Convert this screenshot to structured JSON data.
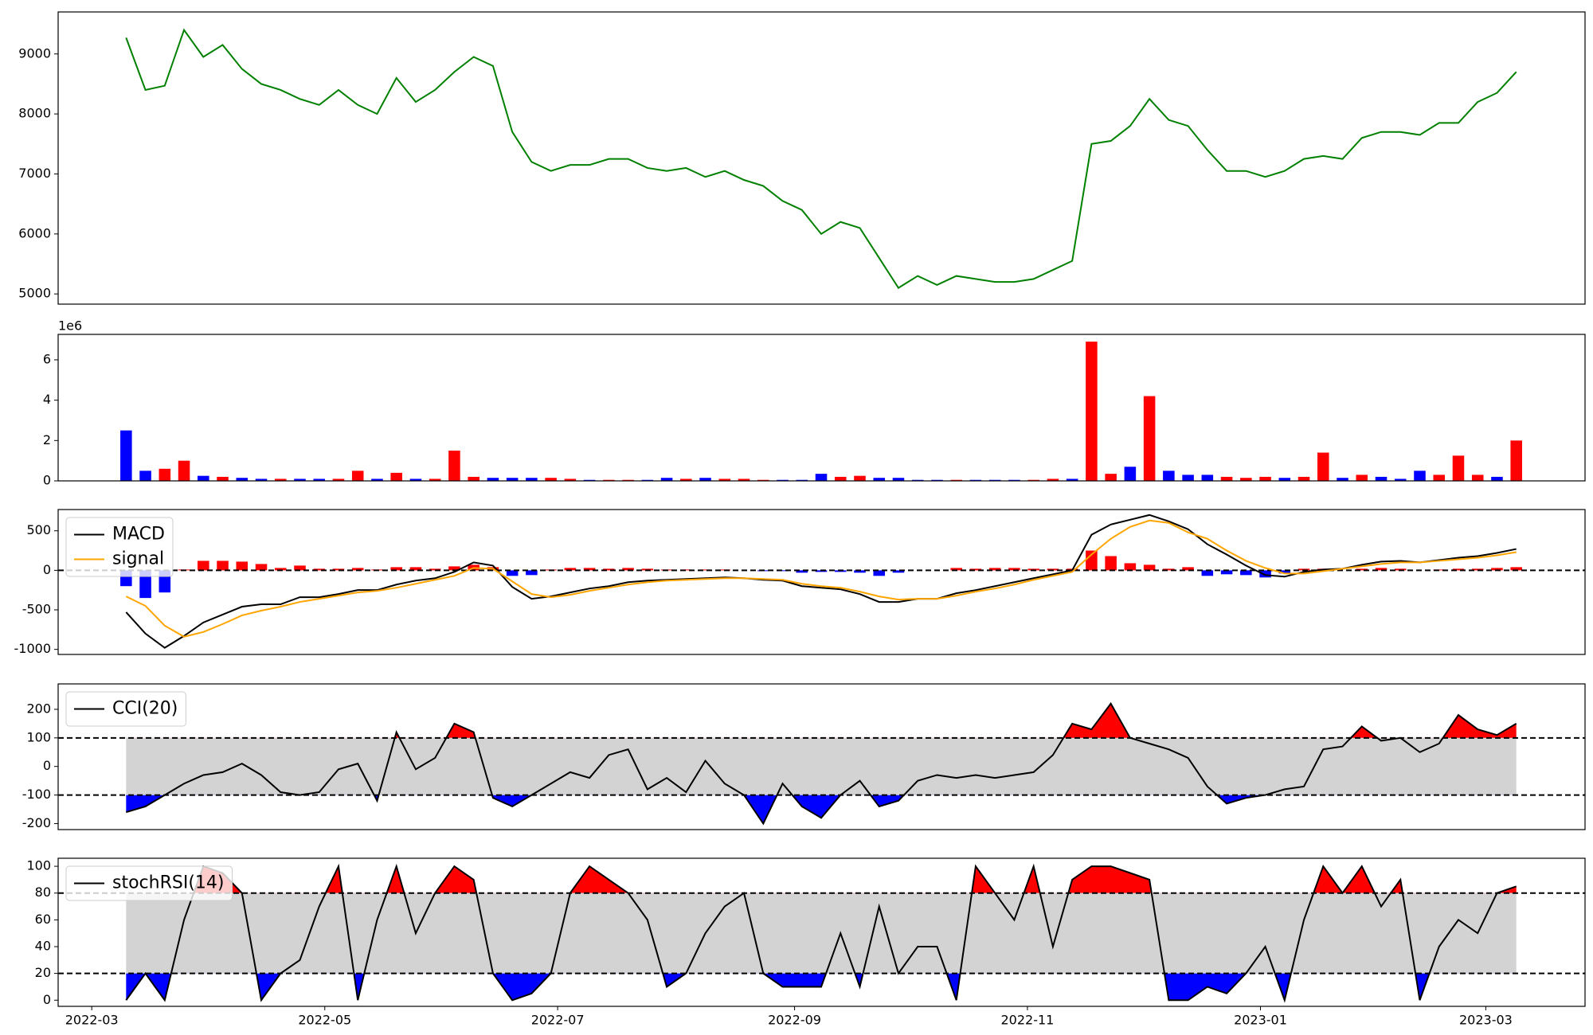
{
  "chart_data": [
    {
      "type": "line",
      "xlim": [
        -3.52,
        75.56
      ],
      "ylim": [
        4830,
        9700
      ],
      "yticks": [
        5000,
        6000,
        7000,
        8000,
        9000
      ],
      "series": [
        {
          "type": "line",
          "color": "green",
          "values": [
            9270,
            8400,
            8470,
            9400,
            8950,
            9150,
            8750,
            8500,
            8400,
            8250,
            8150,
            8400,
            8150,
            8000,
            8600,
            8200,
            8400,
            8700,
            8950,
            8800,
            7700,
            7200,
            7050,
            7150,
            7150,
            7250,
            7250,
            7100,
            7050,
            7100,
            6950,
            7050,
            6900,
            6800,
            6550,
            6400,
            6000,
            6200,
            6100,
            5600,
            5100,
            5300,
            5150,
            5300,
            5250,
            5200,
            5200,
            5250,
            5400,
            5550,
            7500,
            7550,
            7800,
            8250,
            7900,
            7800,
            7400,
            7050,
            7050,
            6950,
            7050,
            7250,
            7300,
            7250,
            7600,
            7700,
            7700,
            7650,
            7850,
            7850,
            8200,
            8350,
            8700
          ]
        }
      ]
    },
    {
      "type": "bar",
      "xlim": [
        -3.52,
        75.56
      ],
      "ylim": [
        0,
        7.26
      ],
      "yticks": [
        0,
        2,
        4,
        6
      ],
      "offset_label": "1e6",
      "series": [
        {
          "type": "bar",
          "values": [
            2.5,
            0.5,
            0.6,
            1.0,
            0.25,
            0.2,
            0.15,
            0.1,
            0.1,
            0.1,
            0.1,
            0.1,
            0.5,
            0.1,
            0.4,
            0.1,
            0.1,
            1.5,
            0.2,
            0.15,
            0.15,
            0.15,
            0.15,
            0.1,
            0.05,
            0.05,
            0.05,
            0.05,
            0.15,
            0.1,
            0.15,
            0.1,
            0.1,
            0.05,
            0.05,
            0.05,
            0.35,
            0.2,
            0.25,
            0.15,
            0.15,
            0.05,
            0.05,
            0.05,
            0.05,
            0.05,
            0.05,
            0.05,
            0.1,
            0.1,
            6.9,
            0.35,
            0.7,
            4.2,
            0.5,
            0.3,
            0.3,
            0.2,
            0.15,
            0.2,
            0.15,
            0.2,
            1.4,
            0.15,
            0.3,
            0.2,
            0.1,
            0.5,
            0.3,
            1.25,
            0.3,
            0.2,
            2.0
          ],
          "colors": [
            "blue",
            "blue",
            "red",
            "red",
            "blue",
            "red",
            "blue",
            "blue",
            "red",
            "blue",
            "blue",
            "red",
            "red",
            "blue",
            "red",
            "blue",
            "red",
            "red",
            "red",
            "blue",
            "blue",
            "blue",
            "red",
            "red",
            "blue",
            "red",
            "red",
            "blue",
            "blue",
            "red",
            "blue",
            "red",
            "red",
            "red",
            "blue",
            "blue",
            "blue",
            "red",
            "red",
            "blue",
            "blue",
            "blue",
            "blue",
            "red",
            "blue",
            "blue",
            "blue",
            "red",
            "red",
            "blue",
            "red",
            "red",
            "blue",
            "red",
            "blue",
            "blue",
            "blue",
            "red",
            "red",
            "red",
            "blue",
            "red",
            "red",
            "blue",
            "red",
            "blue",
            "blue",
            "blue",
            "red",
            "red",
            "red",
            "blue",
            "red"
          ]
        }
      ]
    },
    {
      "type": "line",
      "xlim": [
        -3.52,
        75.56
      ],
      "ylim": [
        -1064,
        769
      ],
      "yticks": [
        -1000,
        -500,
        0,
        500
      ],
      "hlines": [
        0
      ],
      "legend": "upper left",
      "series": [
        {
          "type": "bar",
          "pos_color": "red",
          "neg_color": "blue",
          "values": [
            -200,
            -350,
            -280,
            10,
            120,
            120,
            110,
            80,
            30,
            60,
            20,
            20,
            30,
            10,
            40,
            40,
            20,
            50,
            70,
            40,
            -70,
            -60,
            10,
            30,
            30,
            20,
            30,
            20,
            10,
            10,
            10,
            10,
            0,
            -10,
            -10,
            -30,
            -20,
            -20,
            -30,
            -70,
            -30,
            0,
            0,
            30,
            20,
            30,
            30,
            20,
            20,
            20,
            250,
            180,
            90,
            70,
            20,
            40,
            -70,
            -50,
            -60,
            -90,
            -40,
            20,
            20,
            0,
            20,
            30,
            20,
            0,
            10,
            20,
            20,
            30,
            40
          ]
        },
        {
          "type": "line",
          "name": "MACD",
          "color": "black",
          "values": [
            -530,
            -800,
            -980,
            -830,
            -660,
            -560,
            -460,
            -430,
            -430,
            -340,
            -340,
            -300,
            -250,
            -250,
            -180,
            -130,
            -100,
            -20,
            100,
            60,
            -210,
            -360,
            -330,
            -280,
            -230,
            -200,
            -150,
            -130,
            -120,
            -110,
            -100,
            -90,
            -100,
            -120,
            -130,
            -200,
            -220,
            -240,
            -300,
            -400,
            -400,
            -360,
            -360,
            -290,
            -250,
            -200,
            -150,
            -100,
            -50,
            0,
            450,
            580,
            640,
            700,
            620,
            520,
            330,
            200,
            60,
            -60,
            -80,
            -20,
            10,
            20,
            70,
            110,
            120,
            100,
            130,
            160,
            180,
            220,
            270
          ]
        },
        {
          "type": "line",
          "name": "signal",
          "color": "orange",
          "values": [
            -330,
            -450,
            -700,
            -840,
            -780,
            -680,
            -570,
            -510,
            -460,
            -400,
            -360,
            -320,
            -280,
            -260,
            -220,
            -170,
            -120,
            -70,
            30,
            20,
            -140,
            -300,
            -340,
            -310,
            -260,
            -220,
            -180,
            -150,
            -130,
            -120,
            -110,
            -100,
            -100,
            -110,
            -120,
            -170,
            -200,
            -220,
            -270,
            -330,
            -370,
            -360,
            -360,
            -320,
            -270,
            -230,
            -180,
            -120,
            -70,
            -20,
            200,
            400,
            550,
            630,
            600,
            480,
            400,
            250,
            120,
            30,
            -40,
            -40,
            -10,
            20,
            50,
            80,
            100,
            100,
            120,
            140,
            160,
            190,
            230
          ]
        }
      ]
    },
    {
      "type": "line",
      "xlim": [
        -3.52,
        75.56
      ],
      "ylim": [
        -221,
        289
      ],
      "yticks": [
        -200,
        -100,
        0,
        100,
        200
      ],
      "hlines": [
        -100,
        100
      ],
      "band_color": "#d3d3d3",
      "above_color": "red",
      "below_color": "blue",
      "legend": "upper left",
      "series": [
        {
          "type": "line",
          "name": "CCI(20)",
          "color": "black",
          "values": [
            -160,
            -140,
            -100,
            -60,
            -30,
            -20,
            10,
            -30,
            -90,
            -100,
            -90,
            -10,
            10,
            -120,
            120,
            -10,
            30,
            150,
            120,
            -110,
            -140,
            -100,
            -60,
            -20,
            -40,
            40,
            60,
            -80,
            -40,
            -90,
            20,
            -60,
            -100,
            -200,
            -60,
            -140,
            -180,
            -100,
            -50,
            -140,
            -120,
            -50,
            -30,
            -40,
            -30,
            -40,
            -30,
            -20,
            40,
            150,
            130,
            220,
            100,
            80,
            60,
            30,
            -70,
            -130,
            -110,
            -100,
            -80,
            -70,
            60,
            70,
            140,
            90,
            100,
            50,
            80,
            180,
            130,
            110,
            150
          ]
        }
      ]
    },
    {
      "type": "line",
      "xlim": [
        -3.52,
        75.56
      ],
      "ylim": [
        -4.6,
        106
      ],
      "yticks": [
        0,
        20,
        40,
        60,
        80,
        100
      ],
      "hlines": [
        20,
        80
      ],
      "band_color": "#d3d3d3",
      "above_color": "red",
      "below_color": "blue",
      "legend": "upper left",
      "xticks": [
        {
          "value": -1.78,
          "label": "2022-03"
        },
        {
          "value": 10.29,
          "label": "2022-05"
        },
        {
          "value": 22.35,
          "label": "2022-07"
        },
        {
          "value": 34.62,
          "label": "2022-09"
        },
        {
          "value": 46.68,
          "label": "2022-11"
        },
        {
          "value": 58.75,
          "label": "2023-01"
        },
        {
          "value": 70.42,
          "label": "2023-03"
        }
      ],
      "series": [
        {
          "type": "line",
          "name": "stochRSI(14)",
          "color": "black",
          "values": [
            0,
            20,
            0,
            60,
            100,
            95,
            80,
            0,
            20,
            30,
            70,
            100,
            0,
            60,
            100,
            50,
            80,
            100,
            90,
            20,
            0,
            5,
            20,
            80,
            100,
            90,
            80,
            60,
            10,
            20,
            50,
            70,
            80,
            20,
            10,
            10,
            10,
            50,
            10,
            70,
            20,
            40,
            40,
            0,
            100,
            80,
            60,
            100,
            40,
            90,
            100,
            100,
            95,
            90,
            0,
            0,
            10,
            5,
            20,
            40,
            0,
            60,
            100,
            80,
            100,
            70,
            90,
            0,
            40,
            60,
            50,
            80,
            85
          ]
        }
      ]
    }
  ]
}
